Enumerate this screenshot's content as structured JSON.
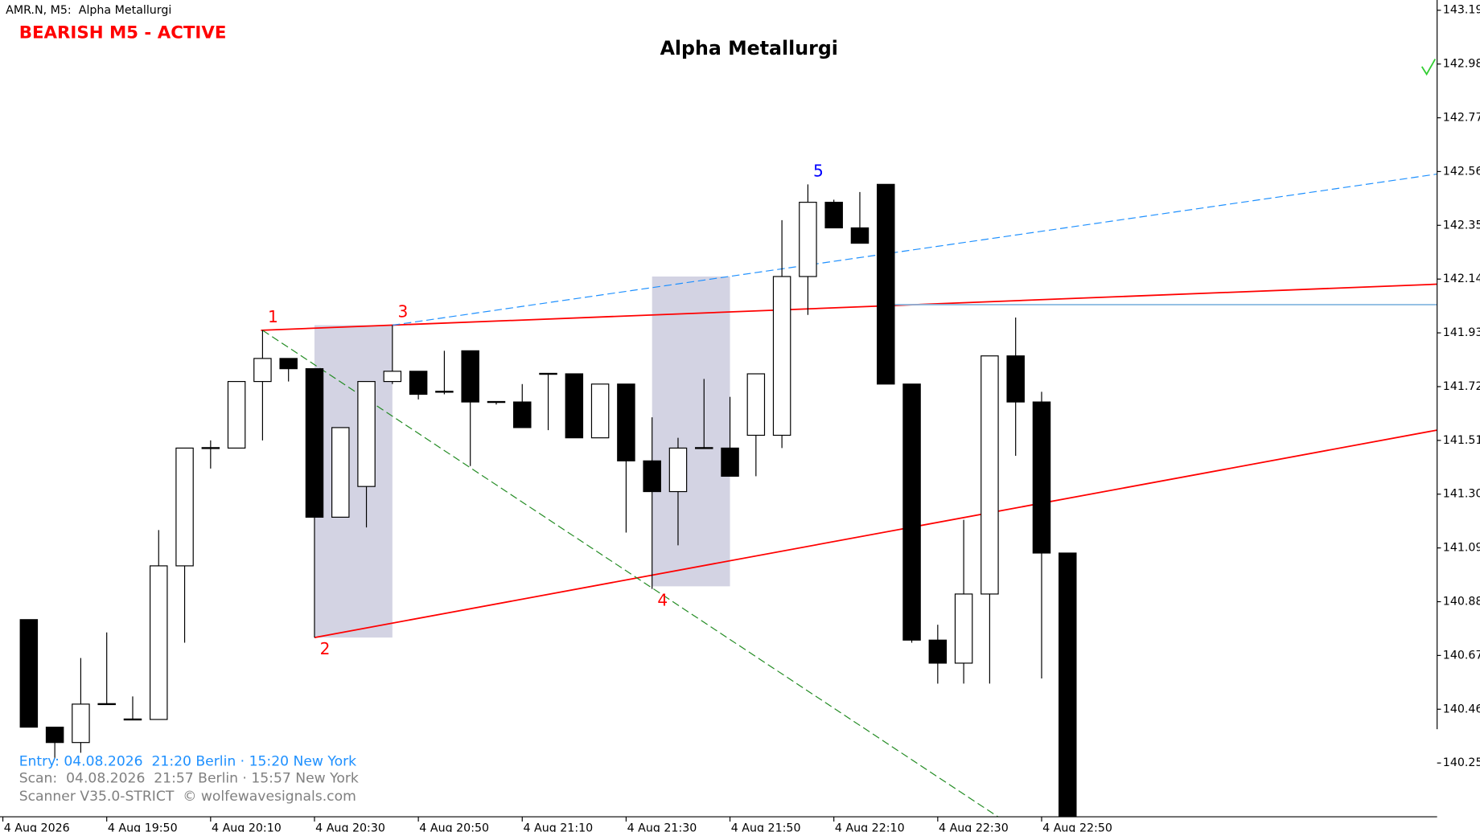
{
  "chart_data": {
    "type": "candlestick",
    "header": "AMR.N, M5:  Alpha Metallurgi",
    "status": "BEARISH M5 - ACTIVE",
    "title": "Alpha Metallurgi",
    "info_lines": [
      "Entry: 04.08.2026  21:20 Berlin · 15:20 New York",
      "Scan:  04.08.2026  21:57 Berlin · 15:57 New York",
      "Scanner V35.0-STRICT  © wolfewavesignals.com"
    ],
    "x": [
      1175,
      1180,
      1185,
      1190,
      1195,
      1200,
      1205,
      1210,
      1215,
      1220,
      1225,
      1230,
      1235,
      1240,
      1245,
      1250,
      1255,
      1260,
      1265,
      1270,
      1275,
      1280,
      1285,
      1290,
      1295,
      1300,
      1305,
      1310,
      1315,
      1320,
      1325,
      1330,
      1335,
      1340,
      1345,
      1350,
      1355,
      1360,
      1365,
      1370,
      1375
    ],
    "open": [
      140.81,
      140.39,
      140.33,
      140.48,
      140.42,
      140.42,
      141.02,
      141.48,
      141.48,
      141.74,
      141.83,
      141.79,
      141.21,
      141.33,
      141.74,
      141.78,
      141.7,
      141.86,
      141.66,
      141.66,
      141.77,
      141.77,
      141.52,
      141.73,
      141.43,
      141.31,
      141.48,
      141.48,
      141.53,
      141.53,
      142.15,
      142.44,
      142.34,
      142.51,
      141.73,
      140.73,
      140.64,
      140.91,
      141.84,
      141.66,
      141.07
    ],
    "high": [
      140.81,
      140.39,
      140.66,
      140.76,
      140.51,
      141.16,
      141.48,
      141.51,
      141.74,
      141.94,
      141.83,
      141.79,
      141.56,
      141.74,
      141.96,
      141.78,
      141.86,
      141.86,
      141.66,
      141.73,
      141.77,
      141.77,
      141.73,
      141.73,
      141.6,
      141.52,
      141.75,
      141.68,
      141.74,
      142.37,
      142.51,
      142.45,
      142.48,
      142.51,
      141.73,
      140.79,
      141.2,
      141.84,
      141.99,
      141.7,
      141.07
    ],
    "low": [
      140.39,
      140.27,
      140.29,
      140.48,
      140.42,
      140.42,
      140.72,
      141.4,
      141.48,
      141.51,
      141.74,
      140.74,
      141.21,
      141.17,
      141.73,
      141.67,
      141.69,
      141.41,
      141.65,
      141.56,
      141.55,
      141.52,
      141.52,
      141.15,
      140.93,
      141.1,
      141.48,
      141.37,
      141.37,
      141.48,
      142.0,
      142.34,
      142.28,
      141.73,
      140.72,
      140.56,
      140.56,
      140.56,
      141.45,
      140.58,
      140.03
    ],
    "close": [
      140.39,
      140.33,
      140.48,
      140.48,
      140.42,
      141.02,
      141.48,
      141.48,
      141.74,
      141.83,
      141.79,
      141.21,
      141.56,
      141.74,
      141.78,
      141.69,
      141.7,
      141.66,
      141.66,
      141.56,
      141.77,
      141.52,
      141.73,
      141.43,
      141.31,
      141.48,
      141.48,
      141.37,
      141.77,
      142.15,
      142.44,
      142.34,
      142.28,
      141.73,
      140.73,
      140.64,
      140.91,
      141.84,
      141.66,
      141.07,
      140.03
    ],
    "up_color": "#ffffff",
    "down_color": "#000000",
    "wick_color": "#000000",
    "xlim": [
      1169.45,
      1446.15
    ],
    "xticks": [
      {
        "value": 1170,
        "label": "4 Aug 2026"
      },
      {
        "value": 1190,
        "label": "4 Aug 19:50"
      },
      {
        "value": 1210,
        "label": "4 Aug 20:10"
      },
      {
        "value": 1230,
        "label": "4 Aug 20:30"
      },
      {
        "value": 1250,
        "label": "4 Aug 20:50"
      },
      {
        "value": 1270,
        "label": "4 Aug 21:10"
      },
      {
        "value": 1290,
        "label": "4 Aug 21:30"
      },
      {
        "value": 1310,
        "label": "4 Aug 21:50"
      },
      {
        "value": 1330,
        "label": "4 Aug 22:10"
      },
      {
        "value": 1350,
        "label": "4 Aug 22:30"
      },
      {
        "value": 1370,
        "label": "4 Aug 22:50"
      }
    ],
    "ylim": [
      140.04,
      143.23
    ],
    "yticks": [
      143.19,
      142.98,
      142.77,
      142.56,
      142.35,
      142.14,
      141.93,
      141.72,
      141.51,
      {
        "value": 141.3,
        "label": "141.30"
      },
      141.09,
      140.88,
      140.67,
      140.46,
      140.25
    ],
    "zones": [
      {
        "x": [
          1230,
          1245
        ],
        "price": [
          141.96,
          140.74
        ],
        "color": "#d3d3e3"
      },
      {
        "x": [
          1295,
          1310
        ],
        "price": [
          142.15,
          140.94
        ],
        "color": "#d3d3e3"
      }
    ],
    "lines": [
      {
        "x": [
          1219.7,
          1446.1
        ],
        "price": [
          141.94,
          142.12
        ],
        "color": "#ff0000",
        "dash": false
      },
      {
        "x": [
          1230,
          1446.1
        ],
        "price": [
          140.74,
          141.55
        ],
        "color": "#ff0000",
        "dash": false
      },
      {
        "x": [
          1245,
          1446.1
        ],
        "price": [
          141.96,
          142.55
        ],
        "color": "#1e90ff",
        "dash": true
      },
      {
        "x": [
          1220,
          1361.6
        ],
        "price": [
          141.94,
          140.04
        ],
        "color": "#228b22",
        "dash": true
      },
      {
        "x": [
          1340,
          1446.1
        ],
        "price": [
          142.04,
          142.04
        ],
        "color": "#87b8e0",
        "dash": false
      }
    ],
    "waves": [
      {
        "label": "1",
        "x": 1220,
        "price": 141.94,
        "color": "#ff0000",
        "above": true
      },
      {
        "label": "2",
        "x": 1230,
        "price": 140.74,
        "color": "#ff0000",
        "above": false
      },
      {
        "label": "3",
        "x": 1245,
        "price": 141.96,
        "color": "#ff0000",
        "above": true
      },
      {
        "label": "4",
        "x": 1295,
        "price": 140.93,
        "color": "#ff0000",
        "above": false
      },
      {
        "label": "5",
        "x": 1325,
        "price": 142.51,
        "color": "#0000ff",
        "above": true
      }
    ]
  }
}
